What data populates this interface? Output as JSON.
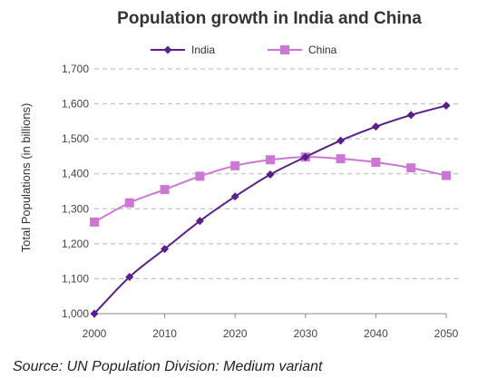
{
  "chart_data": {
    "type": "line",
    "title": "Population growth in India and China",
    "xlabel": "",
    "ylabel": "Total Populations (in billions)",
    "x": [
      2000,
      2005,
      2010,
      2015,
      2020,
      2025,
      2030,
      2035,
      2040,
      2045,
      2050
    ],
    "x_ticks": [
      "2000",
      "2010",
      "2020",
      "2030",
      "2040",
      "2050"
    ],
    "y_ticks": [
      "1,000",
      "1,100",
      "1,200",
      "1,300",
      "1,400",
      "1,500",
      "1,600",
      "1,700"
    ],
    "xlim": [
      2000,
      2050
    ],
    "ylim": [
      1000,
      1700
    ],
    "grid": "horizontal dashed",
    "legend": "top",
    "series": [
      {
        "name": "India",
        "color": "#5b1f8a",
        "marker": "diamond",
        "values": [
          1000,
          1105,
          1185,
          1265,
          1335,
          1398,
          1448,
          1495,
          1535,
          1568,
          1595
        ]
      },
      {
        "name": "China",
        "color": "#cc77d3",
        "marker": "square",
        "values": [
          1262,
          1317,
          1355,
          1393,
          1423,
          1440,
          1448,
          1443,
          1433,
          1417,
          1395
        ]
      }
    ]
  },
  "source_text": "Source: UN Population Division: Medium variant"
}
